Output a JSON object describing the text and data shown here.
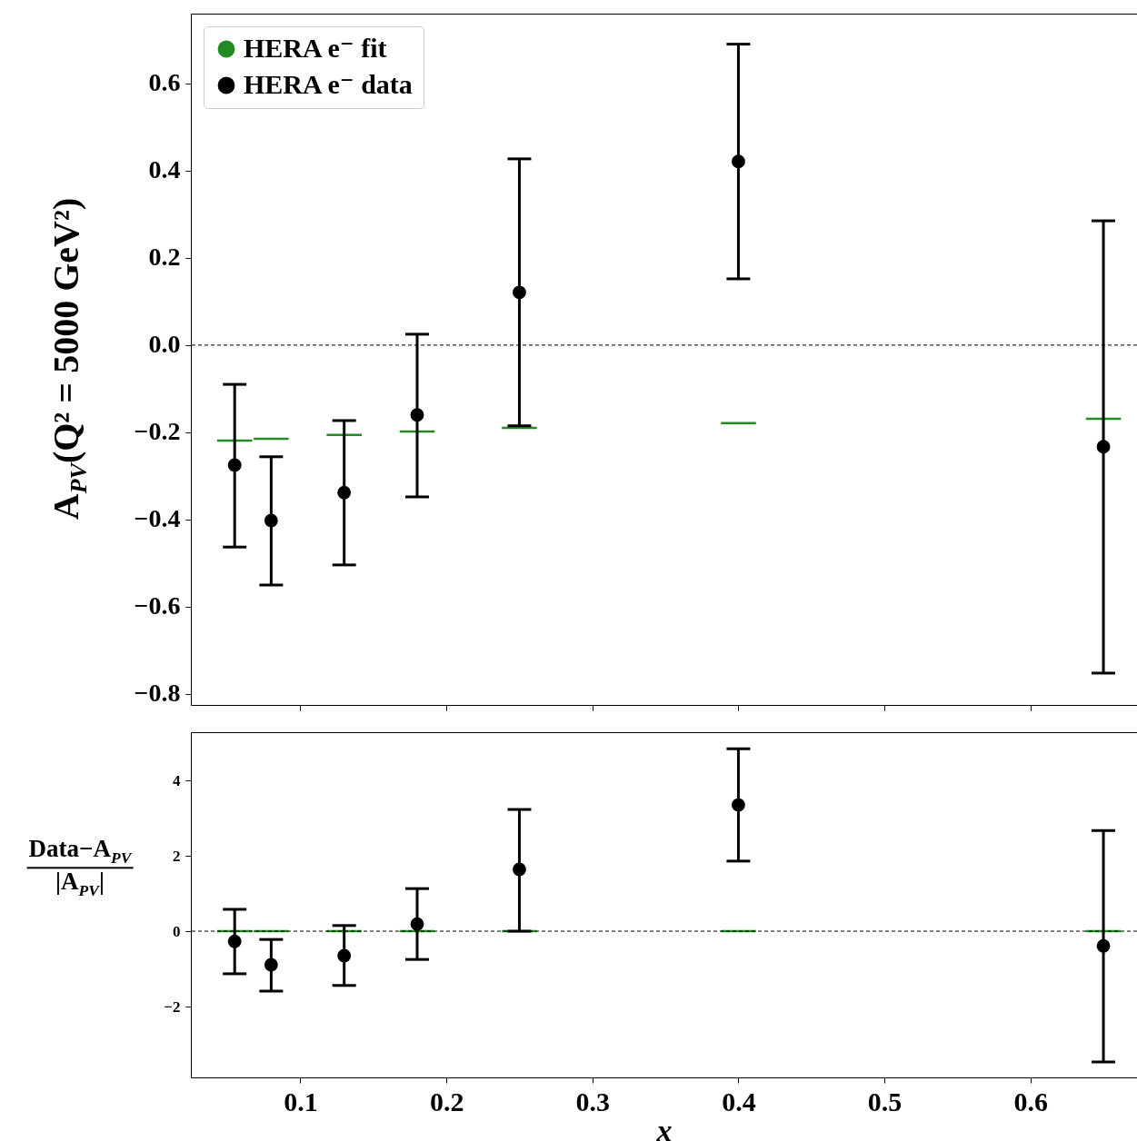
{
  "chart_data": [
    {
      "type": "scatter",
      "ylabel": "A$_{PV}$(Q² = 5000 GeV²)",
      "legend": "top left",
      "tick_labels": "y",
      "xlim": [
        0.025,
        0.673
      ],
      "xticks": [
        0.1,
        0.2,
        0.3,
        0.4,
        0.5,
        0.6
      ],
      "ylim": [
        -0.825,
        0.76
      ],
      "yticks": [
        -0.8,
        -0.6,
        -0.4,
        -0.2,
        {
          "value": 0,
          "label": "0.0"
        },
        0.2,
        0.4,
        0.6
      ],
      "ref_lines": [
        {
          "axis": "y",
          "value": 0,
          "line_style": "dashed"
        }
      ],
      "series": [
        {
          "name": "HERA e⁻ fit",
          "type": "line",
          "color": "#228b22",
          "x": [
            0.043,
            0.067,
            0.0675,
            0.068,
            0.092,
            0.1,
            0.118,
            0.142,
            0.15,
            0.168,
            0.192,
            0.2,
            0.238,
            0.262,
            0.3,
            0.388,
            0.412,
            0.5,
            0.638,
            0.662
          ],
          "values": [
            -0.219,
            -0.219,
            null,
            -0.215,
            -0.215,
            null,
            -0.206,
            -0.206,
            null,
            -0.198,
            -0.198,
            null,
            -0.19,
            -0.19,
            null,
            -0.179,
            -0.179,
            null,
            -0.169,
            -0.169
          ]
        },
        {
          "name": "HERA e⁻ data",
          "color": "#000000",
          "marker": "circle",
          "x": [
            0.055,
            0.08,
            0.13,
            0.18,
            0.25,
            0.4,
            0.65
          ],
          "values": [
            -0.275,
            -0.402,
            -0.338,
            -0.16,
            0.121,
            0.421,
            -0.233
          ],
          "errors": [
            [
              -0.463,
              -0.09
            ],
            [
              -0.55,
              -0.256
            ],
            [
              -0.504,
              -0.173
            ],
            [
              -0.348,
              0.025
            ],
            [
              -0.185,
              0.427
            ],
            [
              0.152,
              0.69
            ],
            [
              -0.752,
              0.285
            ]
          ]
        }
      ]
    },
    {
      "type": "scatter",
      "xlabel": "x",
      "ylabel": "Data−A$_{PV}$\n|A$_{PV}$|",
      "xlim": [
        0.025,
        0.673
      ],
      "xticks": [
        0.1,
        0.2,
        0.3,
        0.4,
        0.5,
        0.6
      ],
      "ylim": [
        -3.88,
        5.28
      ],
      "yticks": [
        -2,
        0,
        2,
        4
      ],
      "ref_lines": [
        {
          "axis": "y",
          "value": 0,
          "line_style": "dashed"
        }
      ],
      "series": [
        {
          "type": "line",
          "color": "#228b22",
          "x": [
            0.043,
            0.067,
            0.0675,
            0.068,
            0.092,
            0.1,
            0.118,
            0.142,
            0.15,
            0.168,
            0.192,
            0.2,
            0.238,
            0.262,
            0.3,
            0.388,
            0.412,
            0.5,
            0.638,
            0.662
          ],
          "values": [
            0,
            0,
            null,
            0,
            0,
            null,
            0,
            0,
            null,
            0,
            0,
            null,
            0,
            0,
            null,
            0,
            0,
            null,
            0,
            0
          ]
        },
        {
          "color": "#000000",
          "marker": "circle",
          "x": [
            0.055,
            0.08,
            0.13,
            0.18,
            0.25,
            0.4,
            0.65
          ],
          "values": [
            -0.27,
            -0.89,
            -0.65,
            0.19,
            1.64,
            3.35,
            -0.39
          ],
          "errors": [
            [
              -1.13,
              0.58
            ],
            [
              -1.59,
              -0.22
            ],
            [
              -1.44,
              0.15
            ],
            [
              -0.75,
              1.13
            ],
            [
              0,
              3.23
            ],
            [
              1.86,
              4.84
            ],
            [
              -3.47,
              2.67
            ]
          ]
        }
      ]
    }
  ]
}
